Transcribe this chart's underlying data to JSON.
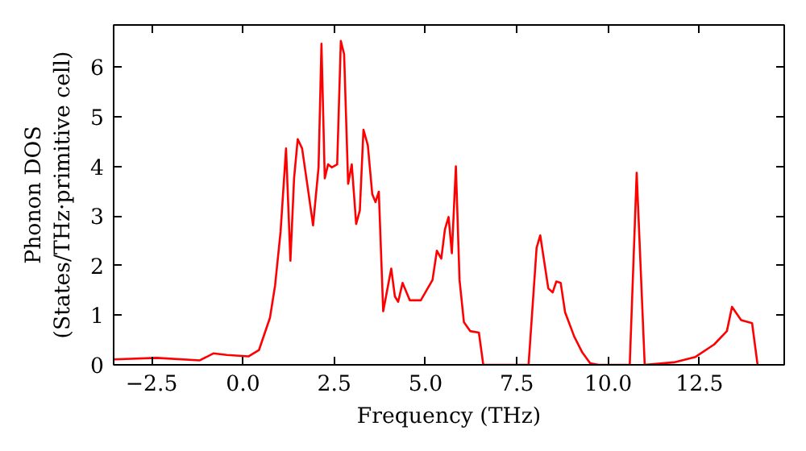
{
  "chart_data": {
    "type": "line",
    "xlabel": "Frequency (THz)",
    "ylabel": "Phonon DOS\n(States/THz·primitive cell)",
    "xlim": [
      -3.54,
      14.82
    ],
    "ylim": [
      0,
      6.85
    ],
    "xticks": [
      {
        "value": -2.5,
        "label": "−2.5"
      },
      {
        "value": 0,
        "label": "0.0"
      },
      {
        "value": 2.5,
        "label": "2.5"
      },
      {
        "value": 5,
        "label": "5.0"
      },
      {
        "value": 7.5,
        "label": "7.5"
      },
      {
        "value": 10,
        "label": "10.0"
      },
      {
        "value": 12.5,
        "label": "12.5"
      }
    ],
    "yticks": [
      0,
      1,
      2,
      3,
      4,
      5,
      6
    ],
    "grid": false,
    "line_style": "solid",
    "marker": "none",
    "series": [
      {
        "color": "#ff0000",
        "x": [
          -3.54,
          -2.36,
          -1.18,
          -0.81,
          -0.44,
          0.15,
          0.44,
          0.74,
          0.88,
          1.03,
          1.18,
          1.3,
          1.4,
          1.5,
          1.62,
          1.8,
          1.92,
          2.07,
          2.15,
          2.24,
          2.33,
          2.43,
          2.58,
          2.68,
          2.77,
          2.88,
          2.98,
          3.1,
          3.2,
          3.3,
          3.42,
          3.54,
          3.63,
          3.72,
          3.84,
          4.06,
          4.16,
          4.25,
          4.37,
          4.57,
          4.87,
          5.19,
          5.31,
          5.43,
          5.53,
          5.63,
          5.72,
          5.83,
          5.93,
          6.05,
          6.22,
          6.46,
          6.58,
          7.82,
          8.04,
          8.14,
          8.36,
          8.48,
          8.58,
          8.7,
          8.82,
          9.07,
          9.29,
          9.51,
          9.73,
          10.59,
          10.78,
          11.0,
          11.8,
          12.39,
          12.9,
          13.25,
          13.39,
          13.64,
          13.94,
          14.09
        ],
        "values": [
          0.11,
          0.14,
          0.09,
          0.23,
          0.2,
          0.17,
          0.3,
          0.95,
          1.6,
          2.68,
          4.36,
          2.1,
          3.76,
          4.55,
          4.36,
          3.44,
          2.81,
          3.98,
          6.47,
          3.76,
          4.04,
          3.98,
          4.04,
          6.53,
          6.26,
          3.65,
          4.04,
          2.84,
          3.11,
          4.74,
          4.42,
          3.44,
          3.28,
          3.49,
          1.08,
          1.94,
          1.38,
          1.27,
          1.65,
          1.3,
          1.3,
          1.71,
          2.3,
          2.14,
          2.73,
          2.98,
          2.25,
          4.0,
          1.71,
          0.86,
          0.68,
          0.65,
          0,
          0,
          2.36,
          2.61,
          1.54,
          1.46,
          1.68,
          1.65,
          1.06,
          0.57,
          0.25,
          0.03,
          0,
          0,
          3.87,
          0,
          0.05,
          0.16,
          0.41,
          0.68,
          1.17,
          0.9,
          0.84,
          0
        ]
      }
    ]
  }
}
